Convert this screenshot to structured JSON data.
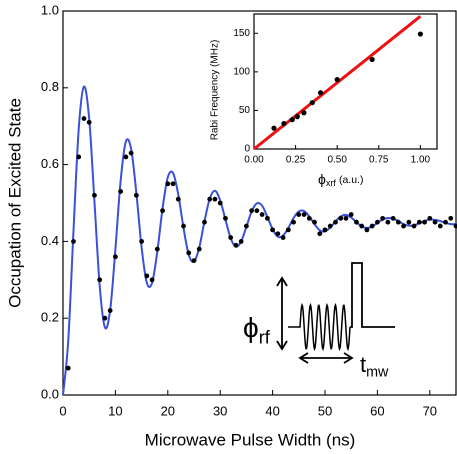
{
  "chart_data": [
    {
      "type": "scatter",
      "x_label": "Microwave Pulse Width (ns)",
      "y_label": "Occupation of Excited State",
      "xlim": [
        0,
        75
      ],
      "ylim": [
        0,
        1
      ],
      "xticks": [
        0,
        10,
        20,
        30,
        40,
        50,
        60,
        70
      ],
      "yticks": [
        {
          "value": 0,
          "label": "0.0"
        },
        {
          "value": 0.2,
          "label": "0.2"
        },
        {
          "value": 0.4,
          "label": "0.4"
        },
        {
          "value": 0.6,
          "label": "0.6"
        },
        {
          "value": 0.8,
          "label": "0.8"
        },
        {
          "value": 1,
          "label": "1.0"
        }
      ],
      "series": [
        {
          "kind": "points",
          "color": "#000000",
          "x": [
            1,
            2,
            3,
            4,
            5,
            6,
            7,
            8,
            9,
            10,
            11,
            12,
            13,
            14,
            15,
            16,
            17,
            18,
            19,
            20,
            21,
            22,
            23,
            24,
            25,
            26,
            27,
            28,
            29,
            30,
            31,
            32,
            33,
            34,
            35,
            36,
            37,
            38,
            39,
            40,
            41,
            42,
            43,
            44,
            45,
            46,
            47,
            48,
            49,
            50,
            51,
            52,
            53,
            54,
            55,
            56,
            57,
            58,
            59,
            60,
            61,
            62,
            63,
            64,
            65,
            66,
            67,
            68,
            69,
            70,
            71,
            72,
            73,
            74,
            75
          ],
          "values": [
            0.07,
            0.4,
            0.62,
            0.72,
            0.71,
            0.52,
            0.3,
            0.2,
            0.22,
            0.36,
            0.53,
            0.62,
            0.63,
            0.52,
            0.4,
            0.31,
            0.3,
            0.38,
            0.48,
            0.55,
            0.55,
            0.51,
            0.44,
            0.37,
            0.35,
            0.38,
            0.45,
            0.51,
            0.51,
            0.5,
            0.46,
            0.41,
            0.39,
            0.4,
            0.44,
            0.48,
            0.48,
            0.47,
            0.46,
            0.43,
            0.42,
            0.41,
            0.43,
            0.45,
            0.47,
            0.47,
            0.46,
            0.45,
            0.42,
            0.43,
            0.44,
            0.45,
            0.46,
            0.46,
            0.47,
            0.45,
            0.44,
            0.43,
            0.44,
            0.45,
            0.46,
            0.45,
            0.46,
            0.45,
            0.44,
            0.45,
            0.44,
            0.45,
            0.45,
            0.46,
            0.45,
            0.44,
            0.45,
            0.46,
            0.44
          ]
        },
        {
          "kind": "line",
          "color": "#3a50d8",
          "x": [
            0,
            1,
            2,
            3,
            4,
            5,
            6,
            7,
            8,
            9,
            10,
            11,
            12,
            13,
            14,
            15,
            16,
            17,
            18,
            19,
            20,
            21,
            22,
            23,
            24,
            25,
            26,
            27,
            28,
            29,
            30,
            31,
            32,
            33,
            34,
            35,
            36,
            37,
            38,
            39,
            40,
            41,
            42,
            43,
            44,
            45,
            46,
            47,
            48,
            49,
            50,
            51,
            52,
            53,
            54,
            55,
            56,
            57,
            58,
            59,
            60,
            61,
            62,
            63,
            64,
            65,
            66,
            67,
            68,
            69,
            70,
            71,
            72,
            73,
            74,
            75
          ],
          "values": [
            0,
            0.141,
            0.427,
            0.693,
            0.803,
            0.719,
            0.504,
            0.285,
            0.176,
            0.221,
            0.38,
            0.558,
            0.66,
            0.641,
            0.526,
            0.384,
            0.292,
            0.292,
            0.374,
            0.486,
            0.567,
            0.578,
            0.522,
            0.435,
            0.365,
            0.347,
            0.384,
            0.452,
            0.511,
            0.532,
            0.507,
            0.457,
            0.408,
            0.386,
            0.4,
            0.438,
            0.478,
            0.499,
            0.493,
            0.464,
            0.432,
            0.412,
            0.415,
            0.435,
            0.461,
            0.478,
            0.479,
            0.465,
            0.445,
            0.429,
            0.426,
            0.436,
            0.452,
            0.465,
            0.469,
            0.462,
            0.45,
            0.439,
            0.435,
            0.439,
            0.448,
            0.457,
            0.461,
            0.459,
            0.453,
            0.445,
            0.441,
            0.442,
            0.447,
            0.453,
            0.457,
            0.456,
            0.453,
            0.448,
            0.445,
            0.445
          ]
        }
      ],
      "annotations": {
        "phi": {
          "symbol": "ϕ",
          "subscript": "rf"
        },
        "t": {
          "symbol": "t",
          "subscript": "mw"
        }
      }
    },
    {
      "type": "scatter",
      "x_label": {
        "symbol": "ϕ",
        "subscript": "xrf",
        "unit": "(a.u.)"
      },
      "y_label": "Rabi Frequency (MHz)",
      "xlim": [
        0,
        1.1
      ],
      "ylim": [
        0,
        175
      ],
      "xticks": [
        {
          "value": 0,
          "label": "0.00"
        },
        {
          "value": 0.25,
          "label": "0.25"
        },
        {
          "value": 0.5,
          "label": "0.50"
        },
        {
          "value": 0.75,
          "label": "0.75"
        },
        {
          "value": 1,
          "label": "1.00"
        }
      ],
      "yticks": [
        0,
        50,
        100,
        150
      ],
      "series": [
        {
          "kind": "points",
          "color": "#000000",
          "x": [
            0.12,
            0.18,
            0.23,
            0.26,
            0.3,
            0.35,
            0.4,
            0.5,
            0.71,
            1.0
          ],
          "values": [
            27,
            33,
            38,
            42,
            47,
            60,
            73,
            90,
            116,
            149
          ]
        },
        {
          "kind": "line",
          "color": "#ee1111",
          "x": [
            0,
            1
          ],
          "values": [
            0,
            172
          ]
        }
      ]
    }
  ]
}
